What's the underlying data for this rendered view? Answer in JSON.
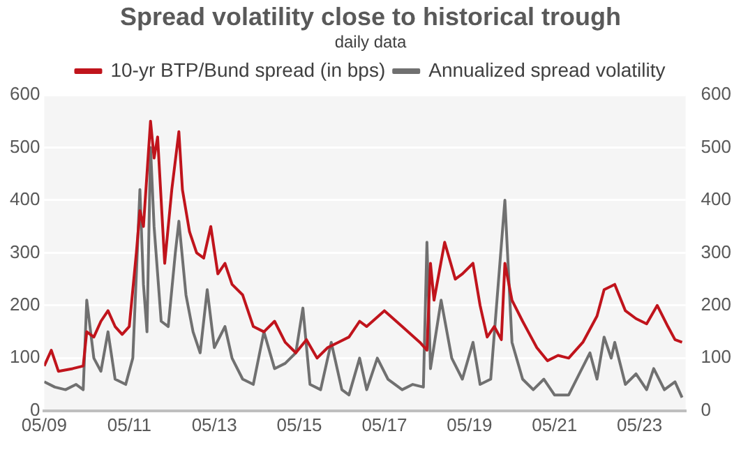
{
  "chart_data": {
    "type": "line",
    "title": "Spread volatility close to historical trough",
    "subtitle": "daily data",
    "xlim": [
      "2009-05",
      "2024-06"
    ],
    "xticks": [
      {
        "value": "2009-05",
        "label": "05/09"
      },
      {
        "value": "2011-05",
        "label": "05/11"
      },
      {
        "value": "2013-05",
        "label": "05/13"
      },
      {
        "value": "2015-05",
        "label": "05/15"
      },
      {
        "value": "2017-05",
        "label": "05/17"
      },
      {
        "value": "2019-05",
        "label": "05/19"
      },
      {
        "value": "2021-05",
        "label": "05/21"
      },
      {
        "value": "2023-05",
        "label": "05/23"
      }
    ],
    "ylim": [
      0,
      600
    ],
    "yticks": [
      0,
      100,
      200,
      300,
      400,
      500,
      600
    ],
    "y2lim": [
      0,
      600
    ],
    "y2ticks": [
      0,
      100,
      200,
      300,
      400,
      500,
      600
    ],
    "grid": "y",
    "legend": "top",
    "marker": "none",
    "line_style": "solid",
    "series": [
      {
        "name": "10-yr BTP/Bund spread (in bps)",
        "color": "#c0141c",
        "x": [
          "2009-05",
          "2009-07",
          "2009-09",
          "2010-01",
          "2010-04",
          "2010-05",
          "2010-07",
          "2010-09",
          "2010-11",
          "2011-01",
          "2011-03",
          "2011-05",
          "2011-07",
          "2011-08",
          "2011-09",
          "2011-11",
          "2011-12",
          "2012-01",
          "2012-03",
          "2012-05",
          "2012-07",
          "2012-08",
          "2012-10",
          "2012-12",
          "2013-02",
          "2013-04",
          "2013-06",
          "2013-08",
          "2013-10",
          "2014-01",
          "2014-04",
          "2014-07",
          "2014-10",
          "2015-01",
          "2015-04",
          "2015-07",
          "2015-10",
          "2016-01",
          "2016-04",
          "2016-07",
          "2016-10",
          "2016-12",
          "2017-05",
          "2017-10",
          "2018-03",
          "2018-05",
          "2018-06",
          "2018-07",
          "2018-10",
          "2019-01",
          "2019-03",
          "2019-06",
          "2019-08",
          "2019-10",
          "2019-12",
          "2020-02",
          "2020-03",
          "2020-05",
          "2020-08",
          "2020-12",
          "2021-03",
          "2021-06",
          "2021-09",
          "2022-01",
          "2022-05",
          "2022-07",
          "2022-10",
          "2023-01",
          "2023-04",
          "2023-07",
          "2023-10",
          "2024-01",
          "2024-03",
          "2024-05"
        ],
        "values": [
          85,
          115,
          75,
          80,
          85,
          150,
          140,
          170,
          190,
          160,
          145,
          160,
          300,
          380,
          350,
          550,
          480,
          520,
          280,
          420,
          530,
          420,
          340,
          300,
          290,
          350,
          260,
          280,
          240,
          220,
          160,
          150,
          170,
          130,
          110,
          135,
          100,
          120,
          130,
          140,
          170,
          160,
          190,
          160,
          130,
          115,
          280,
          210,
          320,
          250,
          260,
          280,
          200,
          140,
          160,
          135,
          280,
          210,
          170,
          120,
          95,
          105,
          100,
          130,
          180,
          230,
          240,
          190,
          175,
          165,
          200,
          160,
          135,
          130
        ]
      },
      {
        "name": "Annualized spread volatility",
        "color": "#707070",
        "x": [
          "2009-05",
          "2009-08",
          "2009-11",
          "2010-02",
          "2010-04",
          "2010-05",
          "2010-07",
          "2010-09",
          "2010-11",
          "2011-01",
          "2011-04",
          "2011-06",
          "2011-08",
          "2011-09",
          "2011-10",
          "2011-11",
          "2011-12",
          "2012-02",
          "2012-04",
          "2012-06",
          "2012-07",
          "2012-09",
          "2012-11",
          "2013-01",
          "2013-03",
          "2013-05",
          "2013-08",
          "2013-10",
          "2014-01",
          "2014-04",
          "2014-07",
          "2014-10",
          "2015-01",
          "2015-04",
          "2015-06",
          "2015-08",
          "2015-11",
          "2016-02",
          "2016-05",
          "2016-07",
          "2016-10",
          "2016-12",
          "2017-03",
          "2017-06",
          "2017-10",
          "2018-01",
          "2018-04",
          "2018-05",
          "2018-06",
          "2018-09",
          "2018-12",
          "2019-03",
          "2019-06",
          "2019-08",
          "2019-11",
          "2020-03",
          "2020-05",
          "2020-08",
          "2020-11",
          "2021-02",
          "2021-05",
          "2021-09",
          "2021-12",
          "2022-03",
          "2022-05",
          "2022-07",
          "2022-09",
          "2022-10",
          "2023-01",
          "2023-04",
          "2023-07",
          "2023-09",
          "2023-12",
          "2024-03",
          "2024-05"
        ],
        "values": [
          55,
          45,
          40,
          50,
          40,
          210,
          100,
          75,
          150,
          60,
          50,
          100,
          420,
          240,
          150,
          500,
          350,
          170,
          160,
          300,
          360,
          220,
          150,
          110,
          230,
          120,
          160,
          100,
          60,
          50,
          150,
          80,
          90,
          110,
          195,
          50,
          40,
          130,
          40,
          30,
          100,
          40,
          100,
          60,
          40,
          50,
          45,
          320,
          80,
          210,
          100,
          60,
          130,
          50,
          60,
          400,
          130,
          60,
          40,
          60,
          30,
          30,
          70,
          110,
          60,
          140,
          100,
          130,
          50,
          70,
          40,
          80,
          40,
          55,
          25
        ]
      }
    ]
  }
}
